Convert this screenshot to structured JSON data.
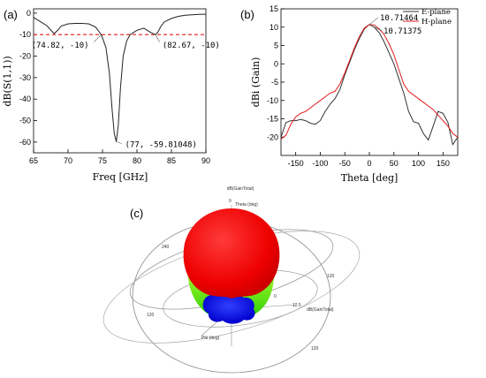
{
  "chart_data": [
    {
      "type": "line",
      "panel": "(a)",
      "xlabel": "Freq [GHz]",
      "ylabel": "dB(S(1,1))",
      "xlim": [
        65,
        90
      ],
      "ylim": [
        -65,
        2
      ],
      "xticks": [
        65,
        70,
        75,
        80,
        85,
        90
      ],
      "yticks": [
        0,
        -10,
        -20,
        -30,
        -40,
        -50,
        -60
      ],
      "series": [
        {
          "color": "#222222",
          "x": [
            65,
            66,
            67,
            67.5,
            68,
            68.5,
            69,
            70,
            71,
            72,
            73,
            74,
            74.82,
            75.5,
            76,
            76.4,
            76.7,
            77,
            77.3,
            77.6,
            78,
            78.5,
            79,
            80,
            81,
            82,
            82.67,
            83,
            83.5,
            84,
            85,
            86,
            87,
            88,
            89,
            90
          ],
          "y": [
            -2,
            -4,
            -6,
            -8,
            -9.5,
            -8,
            -6,
            -5,
            -4.8,
            -4.8,
            -5,
            -6.5,
            -10,
            -16,
            -28,
            -45,
            -56,
            -59.81,
            -52,
            -35,
            -20,
            -13,
            -10,
            -8,
            -7,
            -9,
            -10,
            -9,
            -6,
            -4,
            -2.5,
            -1.5,
            -1,
            -0.8,
            -0.6,
            -0.5
          ]
        }
      ],
      "threshold": {
        "y": -10,
        "color": "#e31a1c"
      },
      "annotations": [
        {
          "text": "(74.82, -10)",
          "x": 74.82,
          "y": -10
        },
        {
          "text": "(82.67, -10)",
          "x": 82.67,
          "y": -10
        },
        {
          "text": "(77, -59.81048)",
          "x": 77,
          "y": -59.81
        }
      ]
    },
    {
      "type": "line",
      "panel": "(b)",
      "xlabel": "Theta [deg]",
      "ylabel": "dBi (Gain)",
      "xlim": [
        -180,
        180
      ],
      "ylim": [
        -25,
        15
      ],
      "xticks": [
        -150,
        -100,
        -50,
        0,
        50,
        100,
        150
      ],
      "yticks": [
        15,
        10,
        5,
        0,
        -5,
        -10,
        -15,
        -20
      ],
      "legend": "top-right",
      "series": [
        {
          "name": "E-plane",
          "color": "#333333",
          "x": [
            -180,
            -170,
            -160,
            -150,
            -140,
            -130,
            -120,
            -110,
            -100,
            -90,
            -80,
            -70,
            -60,
            -50,
            -40,
            -30,
            -20,
            -10,
            0,
            10,
            20,
            30,
            40,
            50,
            60,
            70,
            80,
            90,
            100,
            110,
            120,
            130,
            140,
            150,
            160,
            170,
            180
          ],
          "y": [
            -20,
            -16,
            -15.5,
            -15.5,
            -15.2,
            -15.5,
            -16.2,
            -16.5,
            -15.5,
            -13,
            -11,
            -9.5,
            -7,
            -3,
            0.5,
            4,
            7,
            9.5,
            10.71,
            10,
            8.5,
            6,
            3,
            0,
            -4,
            -8,
            -13,
            -15.8,
            -16.2,
            -19,
            -20.8,
            -17,
            -13,
            -13.5,
            -16,
            -22,
            -20
          ]
        },
        {
          "name": "H-plane",
          "color": "#e31a1c",
          "x": [
            -180,
            -170,
            -160,
            -150,
            -140,
            -130,
            -120,
            -110,
            -100,
            -90,
            -80,
            -70,
            -60,
            -50,
            -40,
            -30,
            -20,
            -10,
            0,
            10,
            20,
            30,
            40,
            50,
            60,
            70,
            80,
            90,
            100,
            110,
            120,
            130,
            140,
            150,
            160,
            170,
            180
          ],
          "y": [
            -20.5,
            -19.5,
            -16.5,
            -14.5,
            -13.5,
            -13,
            -12,
            -11,
            -10,
            -9,
            -8,
            -7.5,
            -5.5,
            -2.5,
            1,
            4.5,
            7.5,
            9.8,
            10.71,
            10.6,
            9.5,
            8,
            5.5,
            2.5,
            -1.5,
            -5.5,
            -7.5,
            -8.5,
            -9.5,
            -10.5,
            -11.5,
            -12.5,
            -14,
            -15.5,
            -17,
            -19,
            -20
          ]
        }
      ],
      "annotations": [
        {
          "text": "10.71464",
          "x": 0,
          "y": 10.71
        },
        {
          "text": "10.71375",
          "x": 0,
          "y": 10.71
        }
      ]
    }
  ],
  "pattern3d": {
    "panel": "(c)",
    "labels": {
      "top": "dB(GainTotal)",
      "theta_zero": "0",
      "theta": "Theta (deg)",
      "phi": "Phi (deg)",
      "right": "dB(GainTotal)",
      "scale_zero": "0",
      "scale_max": "12.5",
      "ring_240": "240",
      "ring_120a": "120",
      "ring_120b": "120",
      "ring_120c": "120"
    },
    "colors": {
      "high": "#ff0000",
      "mid": "#33dd00",
      "low": "#0a1aff"
    }
  }
}
